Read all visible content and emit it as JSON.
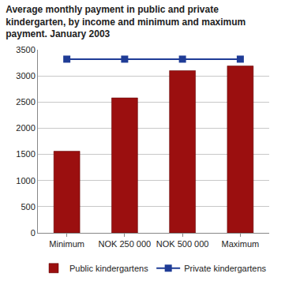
{
  "chart_data": {
    "type": "bar",
    "title": "Average monthly payment in public and private kindergarten, by income and minimum and maximum payment. January 2003",
    "categories": [
      "Minimum",
      "NOK 250 000",
      "NOK 500 000",
      "Maximum"
    ],
    "series": [
      {
        "name": "Public kindergartens",
        "type": "bar",
        "color": "#9b0f0f",
        "values": [
          1560,
          2580,
          3100,
          3190
        ]
      },
      {
        "name": "Private kindergartens",
        "type": "line",
        "color": "#1f3c96",
        "marker": "square",
        "values": [
          3320,
          3320,
          3320,
          3320
        ]
      }
    ],
    "ylim": [
      0,
      3500
    ],
    "yticks": [
      0,
      500,
      1000,
      1500,
      2000,
      2500,
      3000,
      3500
    ],
    "grid": true,
    "legend": "bottom"
  }
}
